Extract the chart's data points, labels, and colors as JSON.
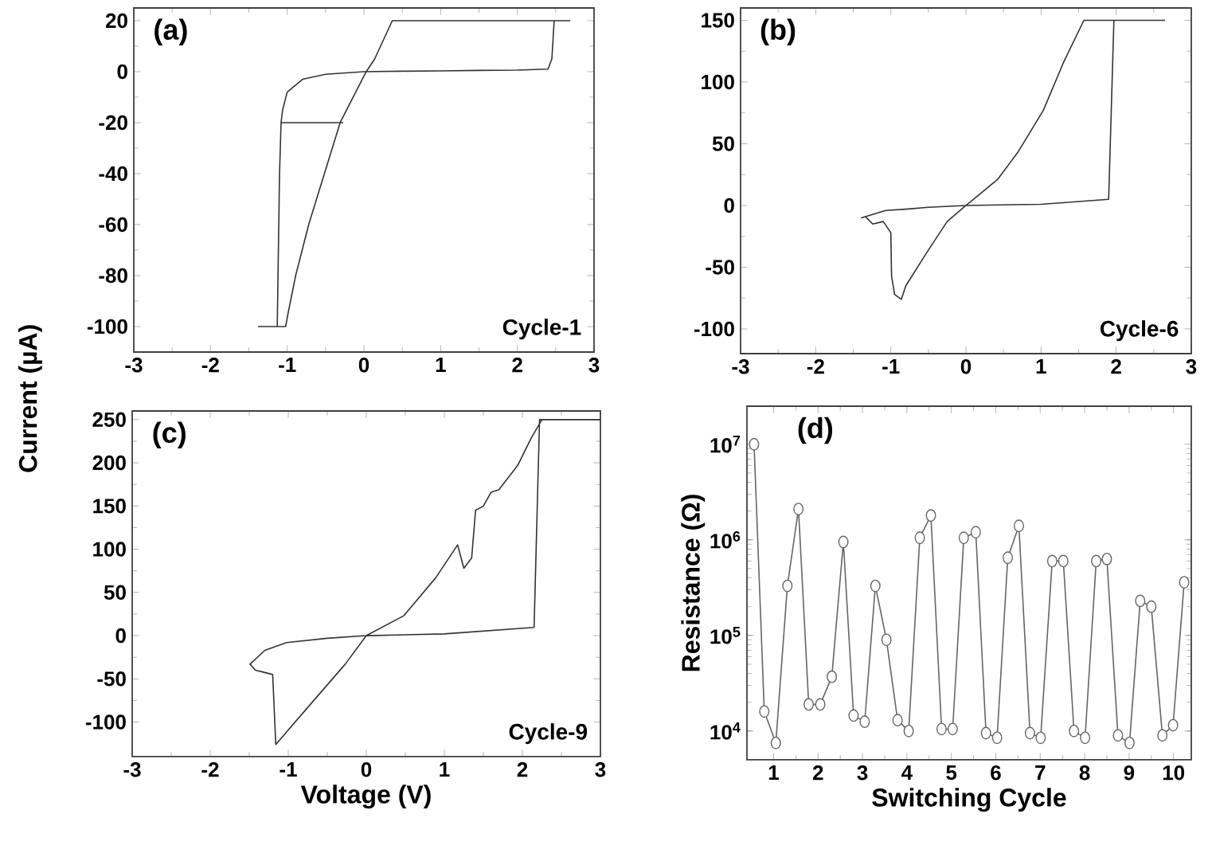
{
  "chart_data": [
    {
      "type": "line",
      "ylabel": "Current (µA)",
      "annotations": [
        "(a)",
        "Cycle-1"
      ],
      "color": "#333333",
      "x": [
        2.69,
        2.48,
        0.37,
        0.14,
        0.03,
        -0.31,
        -0.72,
        -0.89,
        -0.99,
        -1.02,
        -1.13,
        -1.1,
        -1.08,
        -1.06,
        -1.0,
        -0.8,
        -0.5,
        0,
        0.5,
        1,
        1.5,
        2,
        2.4,
        2.45,
        2.48,
        null,
        -1.38,
        -1.13,
        null,
        -1.08,
        -0.27
      ],
      "values": [
        20,
        20,
        20,
        5,
        0,
        -20,
        -60,
        -80,
        -95,
        -100,
        -100,
        -40,
        -20,
        -15,
        -8,
        -3,
        -1,
        0,
        0.2,
        0.3,
        0.5,
        0.6,
        1,
        5,
        20,
        null,
        -100,
        -100,
        null,
        -20,
        -20
      ],
      "xlim": [
        -3,
        3
      ],
      "ylim": [
        -110,
        25
      ],
      "xticks": [
        -3,
        -2,
        -1,
        0,
        1,
        2,
        3
      ],
      "yticks": [
        -100,
        -80,
        -60,
        -40,
        -20,
        0,
        20
      ]
    },
    {
      "type": "line",
      "annotations": [
        "(b)",
        "Cycle-6"
      ],
      "color": "#333333",
      "x": [
        2.65,
        1.97,
        1.57,
        1.3,
        1.03,
        0.69,
        0.42,
        0.08,
        0,
        -0.25,
        -0.53,
        -0.8,
        -0.86,
        -0.95,
        -0.99,
        -1.0,
        -1.1,
        -1.24,
        -1.34,
        -1.39,
        -1.07,
        -0.8,
        -0.5,
        0,
        1,
        1.9,
        1.97
      ],
      "values": [
        150,
        150,
        150,
        116,
        77,
        43,
        21,
        4,
        0,
        -13,
        -39,
        -65,
        -76,
        -72,
        -57,
        -22,
        -13,
        -15,
        -9,
        -10,
        -4,
        -3,
        -1.5,
        0,
        1,
        5,
        150
      ],
      "xlim": [
        -3,
        3
      ],
      "ylim": [
        -120,
        160
      ],
      "xticks": [
        -3,
        -2,
        -1,
        0,
        1,
        2,
        3
      ],
      "yticks": [
        -100,
        -50,
        0,
        50,
        100,
        150
      ]
    },
    {
      "type": "line",
      "xlabel": "Voltage (V)",
      "annotations": [
        "(c)",
        "Cycle-9"
      ],
      "color": "#333333",
      "x": [
        3,
        2.25,
        2.11,
        1.94,
        1.7,
        1.6,
        1.5,
        1.4,
        1.35,
        1.25,
        1.17,
        0.89,
        0.48,
        0,
        -0.27,
        -0.75,
        -1.16,
        -1.2,
        -1.33,
        -1.42,
        -1.49,
        -1.3,
        -1.02,
        -0.5,
        0,
        1,
        2.15,
        2.22,
        2.25
      ],
      "values": [
        250,
        250,
        228,
        197,
        169,
        166,
        150,
        145,
        90,
        78,
        105,
        67,
        23,
        0,
        -33,
        -83,
        -126,
        -45,
        -42,
        -40,
        -33,
        -17,
        -8,
        -3,
        0,
        2,
        9.5,
        250,
        250
      ],
      "xlim": [
        -3,
        3
      ],
      "ylim": [
        -140,
        260
      ],
      "xticks": [
        -3,
        -2,
        -1,
        0,
        1,
        2,
        3
      ],
      "yticks": [
        -100,
        -50,
        0,
        50,
        100,
        150,
        200,
        250
      ]
    },
    {
      "type": "line",
      "xlabel": "Switching Cycle",
      "ylabel": "Resistance (Ω)",
      "annotations": [
        "(d)"
      ],
      "color": "#666666",
      "marker": "circle",
      "log": "y",
      "x": [
        0.56,
        0.79,
        1.05,
        1.31,
        1.56,
        1.79,
        2.05,
        2.31,
        2.57,
        2.8,
        3.05,
        3.29,
        3.54,
        3.79,
        4.04,
        4.29,
        4.54,
        4.78,
        5.03,
        5.28,
        5.55,
        5.78,
        6.03,
        6.27,
        6.52,
        6.77,
        7.01,
        7.27,
        7.52,
        7.76,
        8.01,
        8.26,
        8.5,
        8.75,
        9.01,
        9.25,
        9.5,
        9.75,
        9.99,
        10.24
      ],
      "values": [
        10000000,
        16000,
        7500,
        330000,
        2100000,
        19000,
        19000,
        37000,
        950000,
        14500,
        12500,
        330000,
        90000,
        13000,
        10000,
        1050000,
        1800000,
        10500,
        10500,
        1050000,
        1200000,
        9500,
        8500,
        650000,
        1400000,
        9500,
        8500,
        600000,
        600000,
        10000,
        8500,
        600000,
        630000,
        9000,
        7500,
        230000,
        200000,
        9000,
        11500,
        360000
      ],
      "xlim": [
        0.4,
        10.4
      ],
      "ylim": [
        5000,
        25000000
      ],
      "xticks": [
        1,
        2,
        3,
        4,
        5,
        6,
        7,
        8,
        9,
        10
      ],
      "yticks": [
        {
          "value": 10000,
          "label": "10$^{4}$"
        },
        {
          "value": 100000,
          "label": "10$^{5}$"
        },
        {
          "value": 1000000,
          "label": "10$^{6}$"
        },
        {
          "value": 10000000,
          "label": "10$^{7}$"
        }
      ]
    }
  ]
}
